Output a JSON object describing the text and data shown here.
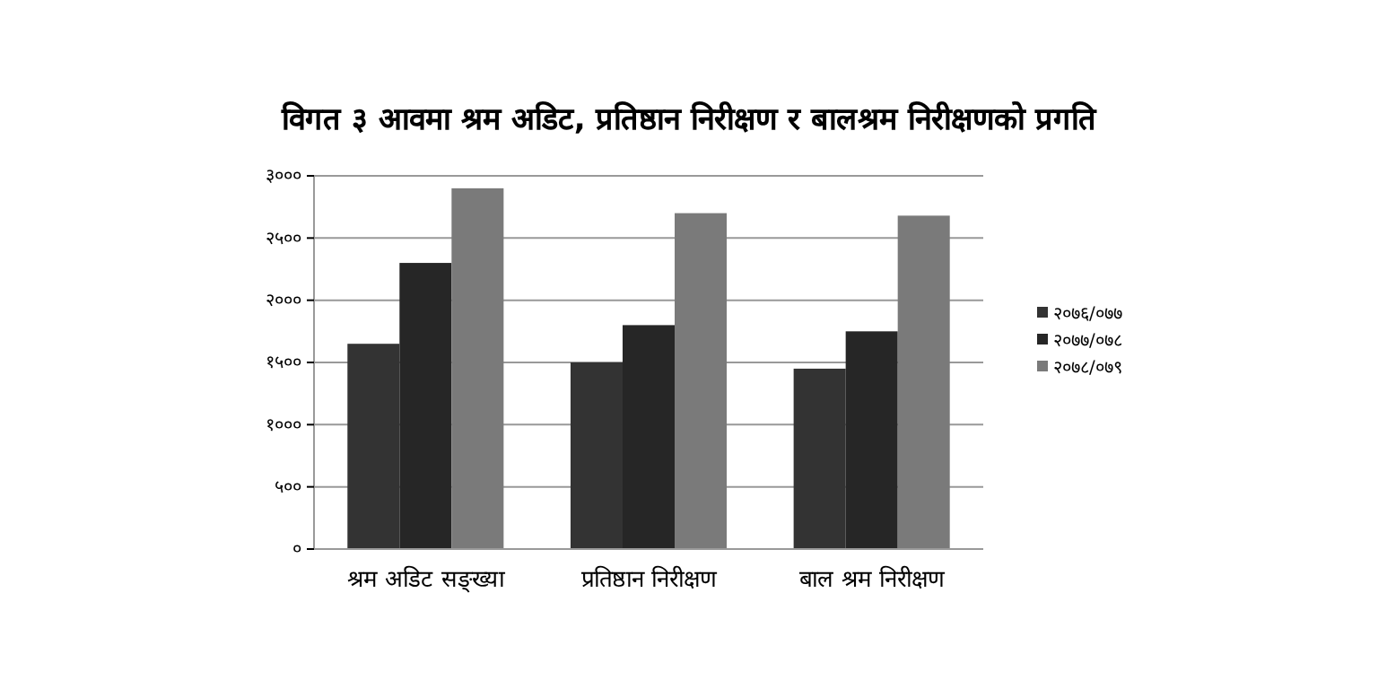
{
  "chart_data": {
    "type": "bar",
    "title": "विगत ३ आवमा श्रम अडिट, प्रतिष्ठान निरीक्षण र बालश्रम निरीक्षणको प्रगति",
    "categories": [
      "श्रम अडिट सङ्ख्या",
      "प्रतिष्ठान निरीक्षण",
      "बाल श्रम निरीक्षण"
    ],
    "series": [
      {
        "name": "२०७६/०७७",
        "color": "#333333",
        "values": [
          1650,
          1500,
          1450
        ]
      },
      {
        "name": "२०७७/०७८",
        "color": "#262626",
        "values": [
          2300,
          1800,
          1750
        ]
      },
      {
        "name": "२०७८/०७९",
        "color": "#7a7a7a",
        "values": [
          2900,
          2700,
          2680
        ]
      }
    ],
    "ylim": [
      0,
      3000
    ],
    "yticks": [
      {
        "value": 0,
        "label": "०"
      },
      {
        "value": 500,
        "label": "५००"
      },
      {
        "value": 1000,
        "label": "१०००"
      },
      {
        "value": 1500,
        "label": "१५००"
      },
      {
        "value": 2000,
        "label": "२०००"
      },
      {
        "value": 2500,
        "label": "२५००"
      },
      {
        "value": 3000,
        "label": "३०००"
      }
    ],
    "grid": "y",
    "legend": "right"
  }
}
